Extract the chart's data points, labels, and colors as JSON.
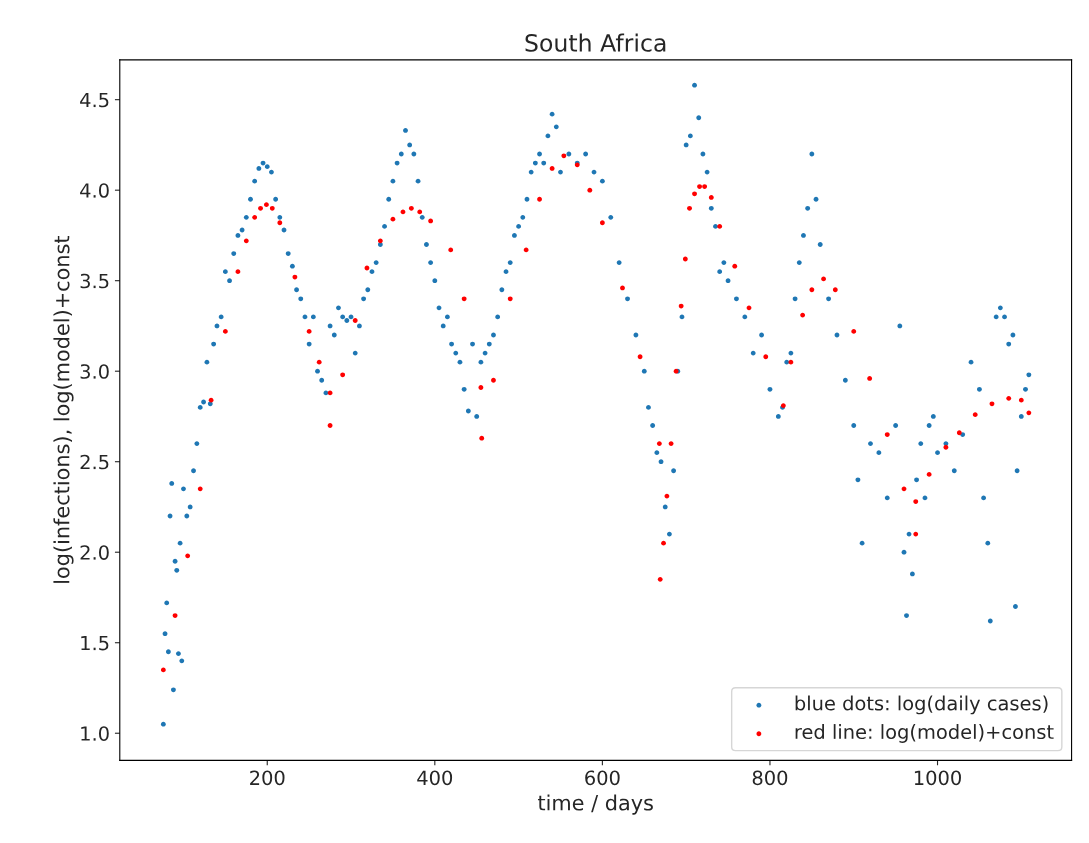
{
  "chart_data": {
    "type": "scatter",
    "title": "South Africa",
    "xlabel": "time / days",
    "ylabel": "log(infections), log(model)+const",
    "xlim": [
      24,
      1160
    ],
    "ylim": [
      0.85,
      4.72
    ],
    "xticks": [
      200,
      400,
      600,
      800,
      1000
    ],
    "yticks": [
      {
        "value": 1.0,
        "label": "1.0"
      },
      {
        "value": 1.5,
        "label": "1.5"
      },
      {
        "value": 2.0,
        "label": "2.0"
      },
      {
        "value": 2.5,
        "label": "2.5"
      },
      {
        "value": 3.0,
        "label": "3.0"
      },
      {
        "value": 3.5,
        "label": "3.5"
      },
      {
        "value": 4.0,
        "label": "4.0"
      },
      {
        "value": 4.5,
        "label": "4.5"
      }
    ],
    "grid": false,
    "legend": "bottom right",
    "marker": "circle",
    "series": [
      {
        "name": "blue dots: log(daily cases)",
        "color": "#1f77b4",
        "x": [
          76,
          78,
          80,
          82,
          84,
          86,
          88,
          90,
          92,
          94,
          96,
          98,
          100,
          104,
          108,
          112,
          116,
          120,
          124,
          128,
          132,
          136,
          140,
          145,
          150,
          155,
          160,
          165,
          170,
          175,
          180,
          185,
          190,
          195,
          200,
          205,
          210,
          215,
          220,
          225,
          230,
          235,
          240,
          245,
          250,
          255,
          260,
          265,
          270,
          275,
          280,
          285,
          290,
          295,
          300,
          305,
          310,
          315,
          320,
          325,
          330,
          335,
          340,
          345,
          350,
          355,
          360,
          365,
          370,
          375,
          380,
          385,
          390,
          395,
          400,
          405,
          410,
          415,
          420,
          425,
          430,
          435,
          440,
          445,
          450,
          455,
          460,
          465,
          470,
          475,
          480,
          485,
          490,
          495,
          500,
          505,
          510,
          515,
          520,
          525,
          530,
          535,
          540,
          545,
          550,
          560,
          570,
          580,
          590,
          600,
          610,
          620,
          630,
          640,
          650,
          655,
          660,
          665,
          670,
          675,
          680,
          685,
          690,
          695,
          700,
          705,
          710,
          715,
          720,
          725,
          730,
          735,
          740,
          745,
          750,
          760,
          770,
          780,
          790,
          800,
          810,
          815,
          820,
          825,
          830,
          835,
          840,
          845,
          850,
          855,
          860,
          870,
          880,
          890,
          900,
          905,
          910,
          920,
          930,
          940,
          950,
          955,
          960,
          963,
          966,
          970,
          975,
          980,
          985,
          990,
          995,
          1000,
          1010,
          1020,
          1030,
          1040,
          1050,
          1055,
          1060,
          1063,
          1070,
          1075,
          1080,
          1085,
          1090,
          1093,
          1095,
          1100,
          1105,
          1109
        ],
        "values": [
          1.05,
          1.55,
          1.72,
          1.45,
          2.2,
          2.38,
          1.24,
          1.95,
          1.9,
          1.44,
          2.05,
          1.4,
          2.35,
          2.2,
          2.25,
          2.45,
          2.6,
          2.8,
          2.83,
          3.05,
          2.82,
          3.15,
          3.25,
          3.3,
          3.55,
          3.5,
          3.65,
          3.75,
          3.78,
          3.85,
          3.95,
          4.05,
          4.12,
          4.15,
          4.13,
          4.1,
          3.95,
          3.85,
          3.78,
          3.65,
          3.58,
          3.45,
          3.4,
          3.3,
          3.15,
          3.3,
          3.0,
          2.95,
          2.88,
          3.25,
          3.2,
          3.35,
          3.3,
          3.28,
          3.3,
          3.1,
          3.25,
          3.4,
          3.45,
          3.55,
          3.6,
          3.7,
          3.8,
          3.95,
          4.05,
          4.15,
          4.2,
          4.33,
          4.25,
          4.2,
          4.05,
          3.85,
          3.7,
          3.6,
          3.5,
          3.35,
          3.25,
          3.3,
          3.15,
          3.1,
          3.05,
          2.9,
          2.78,
          3.15,
          2.75,
          3.05,
          3.1,
          3.15,
          3.2,
          3.3,
          3.45,
          3.55,
          3.6,
          3.75,
          3.8,
          3.85,
          3.95,
          4.1,
          4.15,
          4.2,
          4.15,
          4.3,
          4.42,
          4.35,
          4.1,
          4.2,
          4.15,
          4.2,
          4.1,
          4.05,
          3.85,
          3.6,
          3.4,
          3.2,
          3.0,
          2.8,
          2.7,
          2.55,
          2.5,
          2.25,
          2.1,
          2.45,
          3.0,
          3.3,
          4.25,
          4.3,
          4.58,
          4.4,
          4.2,
          4.1,
          3.9,
          3.8,
          3.55,
          3.6,
          3.5,
          3.4,
          3.3,
          3.1,
          3.2,
          2.9,
          2.75,
          2.8,
          3.05,
          3.1,
          3.4,
          3.6,
          3.75,
          3.9,
          4.2,
          3.95,
          3.7,
          3.4,
          3.2,
          2.95,
          2.7,
          2.4,
          2.05,
          2.6,
          2.55,
          2.3,
          2.7,
          3.25,
          2.0,
          1.65,
          2.1,
          1.88,
          2.4,
          2.6,
          2.3,
          2.7,
          2.75,
          2.55,
          2.6,
          2.45,
          2.65,
          3.05,
          2.9,
          2.3,
          2.05,
          1.62,
          3.3,
          3.35,
          3.3,
          3.15,
          3.2,
          1.7,
          2.45,
          2.75,
          2.9,
          2.98
        ]
      },
      {
        "name": "red line: log(model)+const",
        "color": "#ff0000",
        "x": [
          76,
          90,
          105,
          120,
          133,
          150,
          165,
          175,
          185,
          192,
          199,
          206,
          215,
          233,
          250,
          262,
          275,
          275,
          290,
          305,
          319,
          335,
          350,
          362,
          372,
          382,
          395,
          419,
          435,
          455,
          456,
          470,
          490,
          509,
          525,
          540,
          554,
          570,
          585,
          600,
          624,
          645,
          668,
          669,
          673,
          677,
          682,
          688,
          694,
          699,
          704,
          710,
          716,
          722,
          730,
          740,
          758,
          775,
          795,
          816,
          825,
          839,
          850,
          864,
          878,
          900,
          919,
          940,
          960,
          974,
          974,
          990,
          1010,
          1026,
          1045,
          1065,
          1085,
          1100,
          1109
        ],
        "values": [
          1.35,
          1.65,
          1.98,
          2.35,
          2.84,
          3.22,
          3.55,
          3.72,
          3.85,
          3.9,
          3.92,
          3.9,
          3.82,
          3.52,
          3.22,
          3.05,
          2.88,
          2.7,
          2.98,
          3.28,
          3.57,
          3.72,
          3.84,
          3.88,
          3.9,
          3.88,
          3.83,
          3.67,
          3.4,
          2.91,
          2.63,
          2.95,
          3.4,
          3.67,
          3.95,
          4.12,
          4.19,
          4.14,
          4.0,
          3.82,
          3.46,
          3.08,
          2.6,
          1.85,
          2.05,
          2.31,
          2.6,
          3.0,
          3.36,
          3.62,
          3.9,
          3.98,
          4.02,
          4.02,
          3.96,
          3.8,
          3.58,
          3.35,
          3.08,
          2.81,
          3.05,
          3.31,
          3.45,
          3.51,
          3.45,
          3.22,
          2.96,
          2.65,
          2.35,
          2.1,
          2.28,
          2.43,
          2.58,
          2.66,
          2.76,
          2.82,
          2.85,
          2.84,
          2.77
        ]
      }
    ]
  }
}
